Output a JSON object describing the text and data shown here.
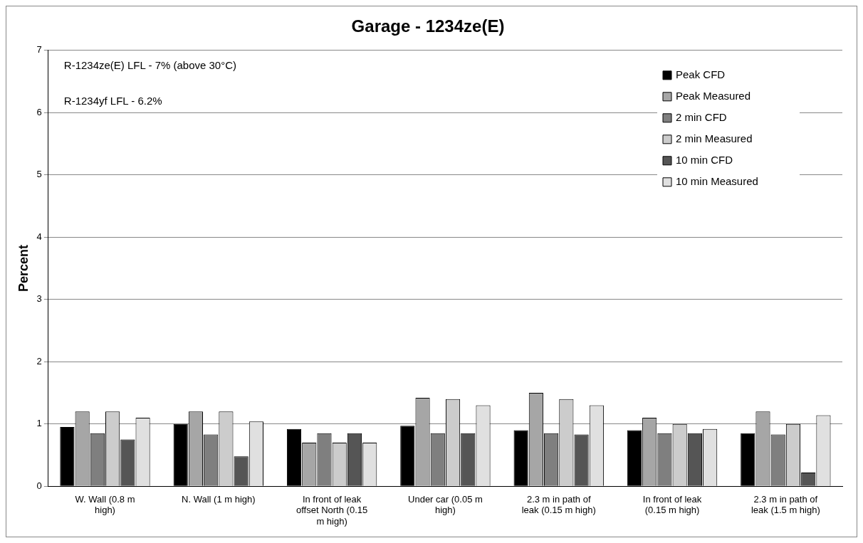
{
  "chart_data": {
    "type": "bar",
    "title": "Garage - 1234ze(E)",
    "ylabel": "Percent",
    "categories": [
      "W. Wall (0.8 m high)",
      "N. Wall (1 m high)",
      "In front of leak offset North (0.15 m high)",
      "Under car (0.05 m high)",
      "2.3 m in path of leak (0.15 m high)",
      "In front of leak (0.15 m high)",
      "2.3 m in path of leak (1.5 m high)"
    ],
    "series": [
      {
        "name": "Peak CFD",
        "color": "#000000",
        "values": [
          0.95,
          1.0,
          0.92,
          0.97,
          0.9,
          0.9,
          0.85
        ]
      },
      {
        "name": "Peak Measured",
        "color": "#a6a6a6",
        "values": [
          1.2,
          1.2,
          0.7,
          1.42,
          1.5,
          1.1,
          1.2
        ]
      },
      {
        "name": "2 min CFD",
        "color": "#7f7f7f",
        "values": [
          0.85,
          0.83,
          0.85,
          0.85,
          0.85,
          0.85,
          0.83
        ]
      },
      {
        "name": "2 min Measured",
        "color": "#cccccc",
        "values": [
          1.2,
          1.2,
          0.7,
          1.4,
          1.4,
          1.0,
          1.0
        ]
      },
      {
        "name": "10 min CFD",
        "color": "#555555",
        "values": [
          0.75,
          0.48,
          0.85,
          0.85,
          0.83,
          0.85,
          0.22
        ]
      },
      {
        "name": "10 min Measured",
        "color": "#e0e0e0",
        "values": [
          1.1,
          1.04,
          0.7,
          1.3,
          1.3,
          0.92,
          1.14
        ]
      }
    ],
    "ylim": [
      0,
      7
    ],
    "yticks": [
      0,
      1,
      2,
      3,
      4,
      5,
      6,
      7
    ],
    "grid": "y",
    "legend": "top right",
    "annotations": [
      "R-1234ze(E) LFL - 7% (above 30°C)",
      "R-1234yf LFL - 6.2%"
    ]
  }
}
